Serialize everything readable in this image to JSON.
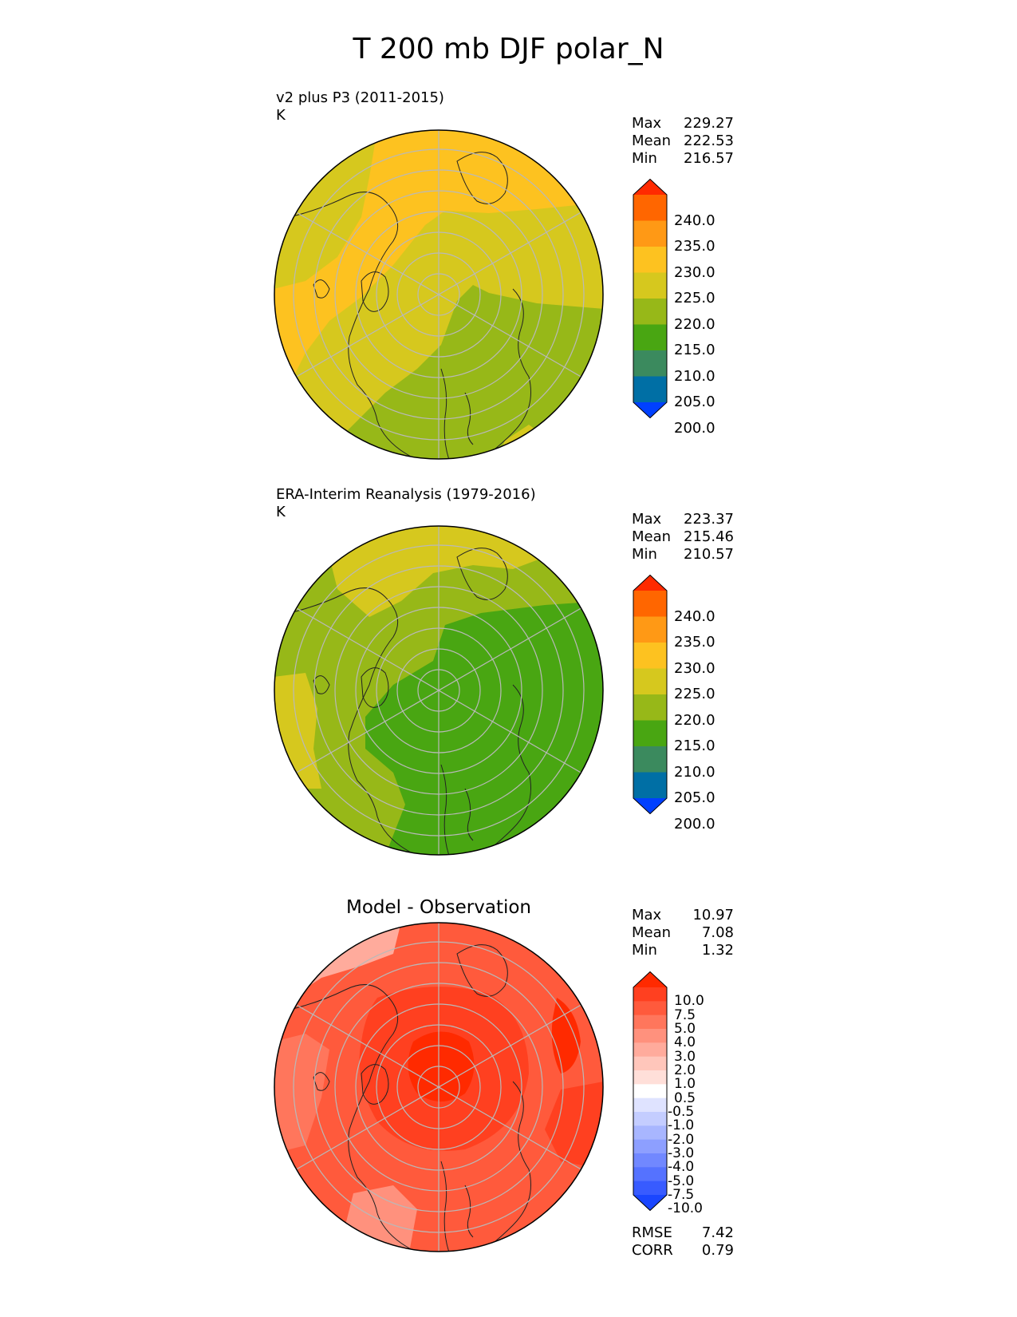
{
  "title": "T 200 mb DJF polar_N",
  "panels": [
    {
      "id": "test",
      "title": "v2 plus P3 (2011-2015)",
      "units": "K",
      "stats": [
        {
          "label": "Max",
          "value": "229.27"
        },
        {
          "label": "Mean",
          "value": "222.53"
        },
        {
          "label": "Min",
          "value": "216.57"
        }
      ]
    },
    {
      "id": "ref",
      "title": "ERA-Interim Reanalysis (1979-2016)",
      "units": "K",
      "stats": [
        {
          "label": "Max",
          "value": "223.37"
        },
        {
          "label": "Mean",
          "value": "215.46"
        },
        {
          "label": "Min",
          "value": "210.57"
        }
      ]
    },
    {
      "id": "diff",
      "title": "Model - Observation",
      "units": "",
      "stats": [
        {
          "label": "Max",
          "value": "10.97"
        },
        {
          "label": "Mean",
          "value": "7.08"
        },
        {
          "label": "Min",
          "value": "1.32"
        }
      ],
      "metrics": [
        {
          "label": "RMSE",
          "value": "7.42"
        },
        {
          "label": "CORR",
          "value": "0.79"
        }
      ]
    }
  ],
  "colorbars": {
    "field": {
      "labels": [
        "240.0",
        "235.0",
        "230.0",
        "225.0",
        "220.0",
        "215.0",
        "210.0",
        "205.0",
        "200.0"
      ],
      "colors_top_to_bottom": [
        "#ff2a00",
        "#ff6600",
        "#ff9915",
        "#fdc220",
        "#d6c81e",
        "#97b818",
        "#49a612",
        "#3b8a5e",
        "#006fa5",
        "#0040ff"
      ]
    },
    "diff": {
      "labels": [
        "10.0",
        "7.5",
        "5.0",
        "4.0",
        "3.0",
        "2.0",
        "1.0",
        "0.5",
        "-0.5",
        "-1.0",
        "-2.0",
        "-3.0",
        "-4.0",
        "-5.0",
        "-7.5",
        "-10.0"
      ],
      "colors_top_to_bottom": [
        "#ff2a00",
        "#ff4020",
        "#ff5a3c",
        "#ff765c",
        "#ff917d",
        "#ffab9c",
        "#ffc6bb",
        "#ffdfd9",
        "#ffffff",
        "#dfe3ff",
        "#c4cdff",
        "#a8b6ff",
        "#8d9fff",
        "#7188ff",
        "#5572ff",
        "#385bff",
        "#1a46ff"
      ]
    }
  },
  "map_fields": {
    "test": {
      "dominant": "220-225",
      "warm_band": "225-230",
      "cool_sector": "215-220"
    },
    "ref": {
      "dominant": "215-220",
      "core": "210-215",
      "warm_patches": "220-225"
    },
    "diff": {
      "dominant": "5.0-7.5",
      "core": "7.5-10.0",
      "weak_patches": "2.0-4.0"
    }
  }
}
